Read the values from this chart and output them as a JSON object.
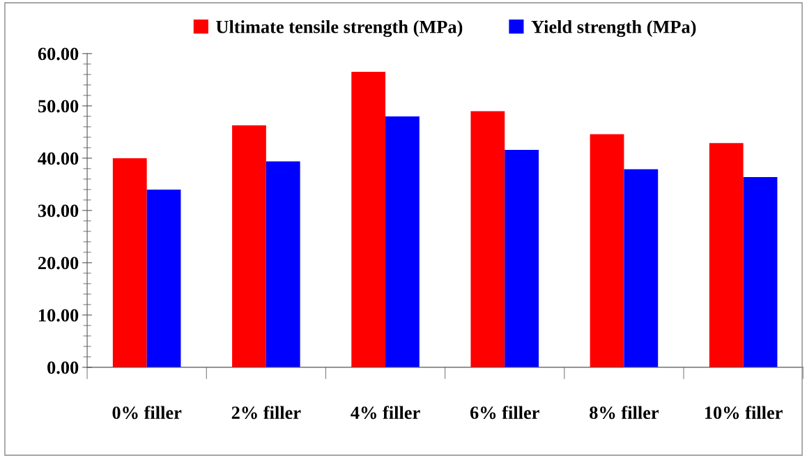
{
  "chart_data": {
    "type": "bar",
    "categories": [
      "0% filler",
      "2% filler",
      "4% filler",
      "6% filler",
      "8% filler",
      "10% filler"
    ],
    "series": [
      {
        "name": "Ultimate tensile strength (MPa)",
        "color": "#ff0000",
        "values": [
          40.0,
          46.3,
          56.5,
          49.0,
          44.6,
          42.9
        ]
      },
      {
        "name": "Yield strength (MPa)",
        "color": "#0000ff",
        "values": [
          34.0,
          39.4,
          48.0,
          41.6,
          37.9,
          36.4
        ]
      }
    ],
    "ylim": [
      0,
      60
    ],
    "yticks": [
      {
        "value": 0,
        "label": "0.00"
      },
      {
        "value": 10,
        "label": "10.00"
      },
      {
        "value": 20,
        "label": "20.00"
      },
      {
        "value": 30,
        "label": "30.00"
      },
      {
        "value": 40,
        "label": "40.00"
      },
      {
        "value": 50,
        "label": "50.00"
      },
      {
        "value": 60,
        "label": "60.00"
      }
    ],
    "grid": false,
    "legend": "top"
  }
}
